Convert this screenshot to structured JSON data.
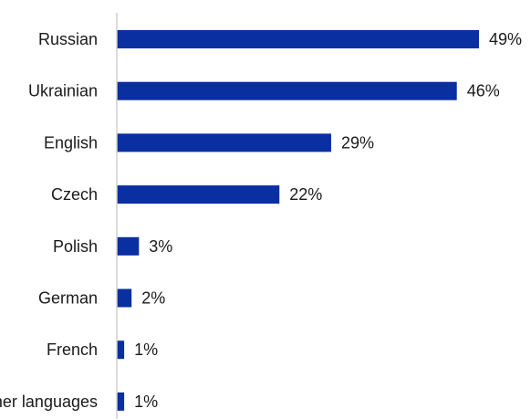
{
  "chart_data": {
    "type": "bar",
    "orientation": "horizontal",
    "categories": [
      "Russian",
      "Ukrainian",
      "English",
      "Czech",
      "Polish",
      "German",
      "French",
      "Other languages"
    ],
    "values": [
      49,
      46,
      29,
      22,
      3,
      2,
      1,
      1
    ],
    "value_labels": [
      "49%",
      "46%",
      "29%",
      "22%",
      "3%",
      "2%",
      "1%",
      "1%"
    ],
    "unit": "%",
    "title": "",
    "xlabel": "",
    "ylabel": "",
    "xlim": [
      0,
      49
    ],
    "grid": false,
    "legend": "none",
    "bar_color": "#0a2fa0",
    "axis_color": "#d0d0d0"
  }
}
